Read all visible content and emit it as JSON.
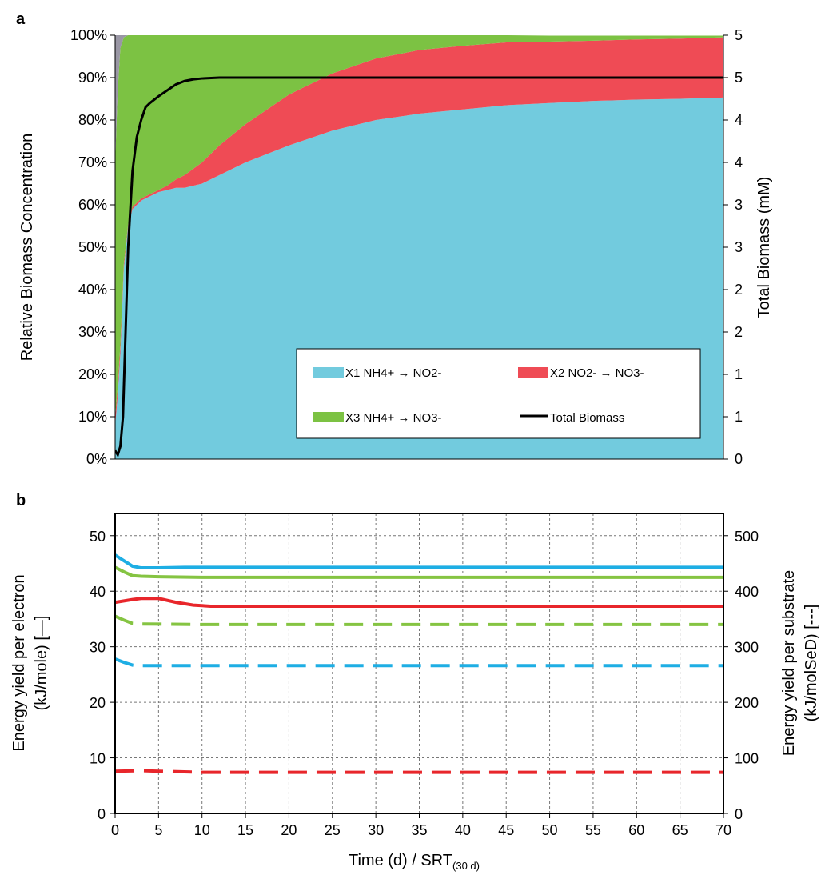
{
  "panel_a_label": "a",
  "panel_b_label": "b",
  "colors": {
    "x1": "#72cbde",
    "x2": "#ef4b55",
    "x3": "#7cc243",
    "small": "#9a97a5",
    "total": "#000000",
    "blue_line": "#1eaee4",
    "green_line": "#85c442",
    "red_line": "#e8262b"
  },
  "chart_data": [
    {
      "id": "a",
      "type": "area",
      "ylabel": "Relative Biomass Concentration",
      "y2label": "Total Biomass (mM)",
      "ylim": [
        0,
        100
      ],
      "yticks": [
        "0%",
        "10%",
        "20%",
        "30%",
        "40%",
        "50%",
        "60%",
        "70%",
        "80%",
        "90%",
        "100%"
      ],
      "y2ticks": [
        "0",
        "1",
        "1",
        "2",
        "2",
        "3",
        "3",
        "4",
        "4",
        "5",
        "5"
      ],
      "y2lim": [
        0,
        5
      ],
      "xlim": [
        0,
        70
      ],
      "legend": {
        "x1": "X1 NH4+ → NO2-",
        "x2": "X2 NO2- → NO3-",
        "x3": "X3 NH4+ → NO3-",
        "total": "Total Biomass"
      },
      "x": [
        0,
        0.3,
        0.6,
        1,
        1.5,
        2,
        2.5,
        3,
        4,
        5,
        6,
        7,
        8,
        10,
        12,
        15,
        20,
        25,
        30,
        35,
        40,
        45,
        50,
        55,
        60,
        65,
        70
      ],
      "series": [
        {
          "name": "X1 NH4+ → NO2-",
          "values": [
            8,
            15,
            25,
            45,
            55,
            59,
            60,
            61,
            62,
            63,
            63.5,
            64,
            64,
            65,
            67,
            70,
            74,
            77.5,
            80,
            81.5,
            82.5,
            83.5,
            84,
            84.5,
            84.8,
            85,
            85.3
          ]
        },
        {
          "name": "X2 NO2- → NO3-",
          "values": [
            2,
            2,
            2,
            1,
            0.5,
            0.5,
            0.5,
            0.5,
            0.5,
            0.5,
            1,
            2,
            3,
            5,
            7,
            9,
            12,
            13.5,
            14.5,
            15,
            15,
            14.8,
            14.5,
            14.2,
            14.2,
            14.2,
            14.2
          ]
        },
        {
          "name": "X3 NH4+ → NO3-",
          "values": [
            60,
            70,
            70,
            53.5,
            44.5,
            40.5,
            39.5,
            38.5,
            37.5,
            36.5,
            35.5,
            34,
            33,
            30,
            26,
            21,
            14,
            9.5,
            5.5,
            3.5,
            2.5,
            1.7,
            1.4,
            1.2,
            0.9,
            0.7,
            0.4
          ]
        },
        {
          "name": "Other",
          "values": [
            30,
            13,
            3,
            0.5,
            0,
            0,
            0,
            0,
            0,
            0,
            0,
            0,
            0,
            0,
            0,
            0,
            0,
            0,
            0,
            0,
            0,
            0,
            0,
            0,
            0,
            0,
            0
          ]
        },
        {
          "name": "Total Biomass",
          "axis": "right",
          "x": [
            0,
            0.3,
            0.6,
            0.9,
            1.2,
            1.5,
            2,
            2.5,
            3,
            3.5,
            4,
            5,
            6,
            7,
            8,
            9,
            10,
            12,
            15,
            20,
            30,
            40,
            50,
            60,
            70
          ],
          "values": [
            0.1,
            0.05,
            0.15,
            0.5,
            1.5,
            2.5,
            3.4,
            3.8,
            4.0,
            4.15,
            4.2,
            4.28,
            4.35,
            4.42,
            4.46,
            4.48,
            4.49,
            4.5,
            4.5,
            4.5,
            4.5,
            4.5,
            4.5,
            4.5,
            4.5
          ]
        }
      ]
    },
    {
      "id": "b",
      "type": "line",
      "xlabel": "Time (d) / SRT",
      "xlabel_sub": "(30 d)",
      "ylabel_line1": "Energy  yield per electron",
      "ylabel_line2": "(kJ/mole) [—]",
      "y2label_line1": "Energy  yield per substrate",
      "y2label_line2": "(kJ/molSeD) [---]",
      "xlim": [
        0,
        70
      ],
      "ylim": [
        0,
        54
      ],
      "y2lim": [
        0,
        540
      ],
      "xticks": [
        0,
        5,
        10,
        15,
        20,
        25,
        30,
        35,
        40,
        45,
        50,
        55,
        60,
        65,
        70
      ],
      "yticks": [
        0,
        10,
        20,
        30,
        40,
        50
      ],
      "y2ticks": [
        0,
        100,
        200,
        300,
        400,
        500
      ],
      "grid": true,
      "series": [
        {
          "color": "blue",
          "style": "solid",
          "axis": "left",
          "x": [
            0,
            1,
            2,
            3,
            5,
            8,
            10,
            70
          ],
          "values": [
            46.5,
            45.5,
            44.5,
            44.2,
            44.2,
            44.3,
            44.3,
            44.3
          ]
        },
        {
          "color": "green",
          "style": "solid",
          "axis": "left",
          "x": [
            0,
            1,
            2,
            3,
            5,
            10,
            70
          ],
          "values": [
            44.3,
            43.5,
            42.8,
            42.7,
            42.6,
            42.5,
            42.5
          ]
        },
        {
          "color": "red",
          "style": "solid",
          "axis": "left",
          "x": [
            0,
            2,
            3,
            5,
            7,
            9,
            11,
            15,
            70
          ],
          "values": [
            38,
            38.5,
            38.7,
            38.7,
            38.0,
            37.5,
            37.3,
            37.3,
            37.3
          ]
        },
        {
          "color": "green",
          "style": "dashed",
          "axis": "right",
          "x": [
            0,
            1,
            2,
            3,
            10,
            70
          ],
          "values": [
            355,
            348,
            342,
            341,
            340,
            340
          ]
        },
        {
          "color": "blue",
          "style": "dashed",
          "axis": "right",
          "x": [
            0,
            1,
            2,
            3,
            10,
            70
          ],
          "values": [
            278,
            272,
            267,
            266,
            266,
            266
          ]
        },
        {
          "color": "red",
          "style": "dashed",
          "axis": "right",
          "x": [
            0,
            3,
            5,
            10,
            70
          ],
          "values": [
            76,
            77,
            76,
            74,
            74
          ]
        }
      ]
    }
  ]
}
